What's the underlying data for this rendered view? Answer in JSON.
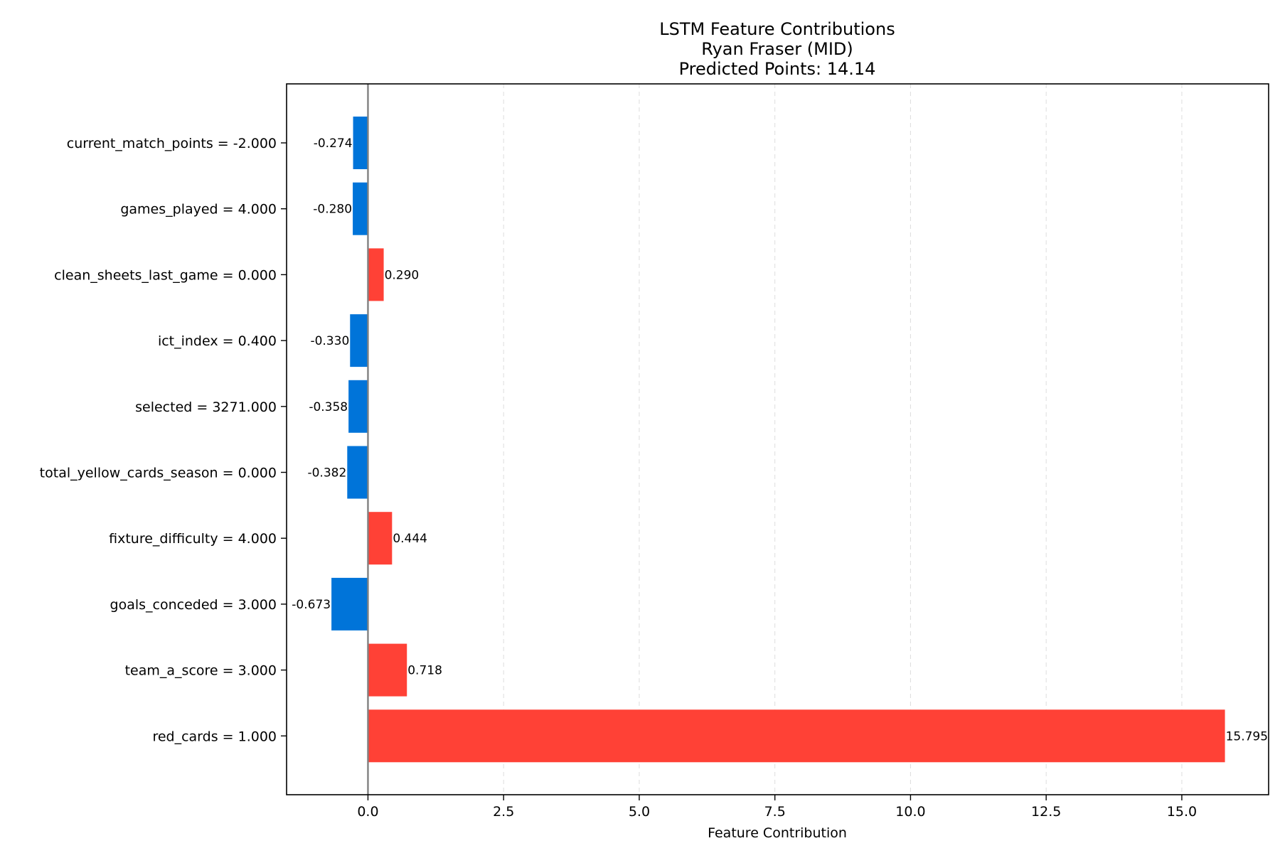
{
  "chart_data": {
    "type": "bar",
    "orientation": "horizontal",
    "title_lines": [
      "LSTM Feature Contributions",
      "Ryan Fraser (MID)",
      "Predicted Points: 14.14"
    ],
    "xlabel": "Feature Contribution",
    "ylabel": "",
    "xlim": [
      -1.5,
      16.6
    ],
    "xticks": [
      0.0,
      2.5,
      5.0,
      7.5,
      10.0,
      12.5,
      15.0
    ],
    "xtick_labels": [
      "0.0",
      "2.5",
      "5.0",
      "7.5",
      "10.0",
      "12.5",
      "15.0"
    ],
    "grid": "x-dashed",
    "zero_line": true,
    "categories": [
      "current_match_points = -2.000",
      "games_played = 4.000",
      "clean_sheets_last_game = 0.000",
      "ict_index = 0.400",
      "selected = 3271.000",
      "total_yellow_cards_season = 0.000",
      "fixture_difficulty = 4.000",
      "goals_conceded = 3.000",
      "team_a_score = 3.000",
      "red_cards = 1.000"
    ],
    "values": [
      -0.274,
      -0.28,
      0.29,
      -0.33,
      -0.358,
      -0.382,
      0.444,
      -0.673,
      0.718,
      15.795
    ],
    "value_labels": [
      "-0.274",
      "-0.280",
      "0.290",
      "-0.330",
      "-0.358",
      "-0.382",
      "0.444",
      "-0.673",
      "0.718",
      "15.795"
    ],
    "colors": {
      "positive": "#ff4136",
      "negative": "#0074d9",
      "zero_line": "#808080",
      "grid": "#dddddd"
    }
  }
}
